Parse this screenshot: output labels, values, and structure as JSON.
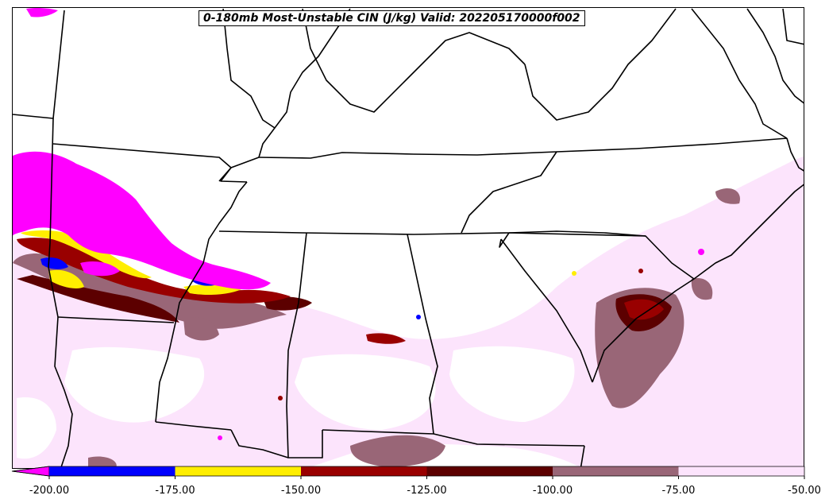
{
  "title": "0-180mb Most-Unstable CIN (J/kg) Valid: 202205170000f002",
  "colorbar": {
    "bins": [
      {
        "min": -200,
        "max": -175,
        "color": "#0000ff"
      },
      {
        "min": -175,
        "max": -150,
        "color": "#ffee00"
      },
      {
        "min": -150,
        "max": -125,
        "color": "#990000"
      },
      {
        "min": -125,
        "max": -100,
        "color": "#5c0000"
      },
      {
        "min": -100,
        "max": -75,
        "color": "#996677"
      },
      {
        "min": -75,
        "max": -50,
        "color": "#fce4fc"
      }
    ],
    "under_color": "#ff00ff",
    "ticks": [
      "-200.00",
      "-175.00",
      "-150.00",
      "-125.00",
      "-100.00",
      "-75.00",
      "-50.00"
    ]
  },
  "colors": {
    "boundary": "#000000",
    "background": "#ffffff"
  }
}
